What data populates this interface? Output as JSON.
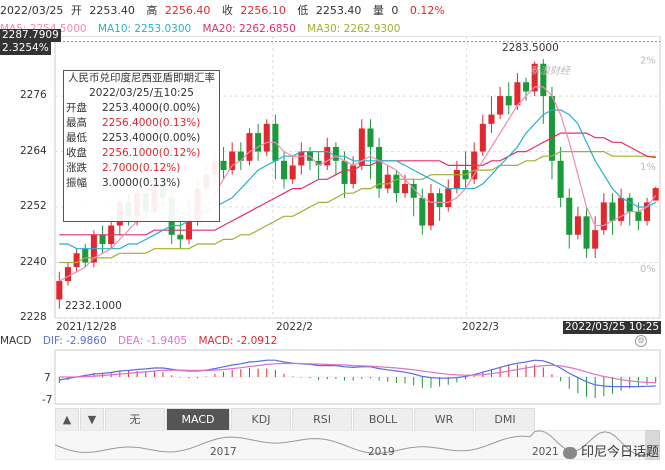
{
  "header": {
    "date": "2022/03/25",
    "open_label": "开",
    "open": "2253.40",
    "high_label": "高",
    "high": "2256.40",
    "close_label": "收",
    "close": "2256.10",
    "low_label": "低",
    "low": "2253.40",
    "vol_label": "量",
    "vol": "0",
    "change": "0.12%"
  },
  "legend": [
    {
      "text": "MA5: 2254.5000",
      "color": "#f08cb4"
    },
    {
      "text": "MA10: 2253.0300",
      "color": "#2ab0c8"
    },
    {
      "text": "MA20: 2262.6850",
      "color": "#e0306a"
    },
    {
      "text": "MA30: 2262.9300",
      "color": "#a0b030"
    }
  ],
  "tags": {
    "top_price": "2287.7909",
    "top_pct": "2.3254%",
    "max_label": "2283.5000",
    "min_label": "2232.1000",
    "crosshair_time": "2022/03/25 10:25"
  },
  "tooltip": {
    "title": "人民币兑印度尼西亚盾即期汇率",
    "time": "2022/03/25/五10:25",
    "rows": [
      {
        "k": "开盘",
        "v": "2253.4000(0.00%)",
        "color": "#333"
      },
      {
        "k": "最高",
        "v": "2256.4000(0.13%)",
        "color": "#e0282e"
      },
      {
        "k": "最低",
        "v": "2253.4000(0.00%)",
        "color": "#333"
      },
      {
        "k": "收盘",
        "v": "2256.1000(0.12%)",
        "color": "#e0282e"
      },
      {
        "k": "涨跌",
        "v": "2.7000(0.12%)",
        "color": "#e0282e"
      },
      {
        "k": "振幅",
        "v": "3.0000(0.13%)",
        "color": "#333"
      }
    ]
  },
  "watermark_logo": "新浪财经",
  "macd": {
    "label": "MACD",
    "dif": "DIF: -2.9860",
    "dea": "DEA: -1.9405",
    "macd": "MACD: -2.0912",
    "yticks": [
      "7",
      "-7"
    ]
  },
  "tabs": [
    "无",
    "MACD",
    "KDJ",
    "RSI",
    "BOLL",
    "WR",
    "DMI"
  ],
  "active_tab": "MACD",
  "arrows": [
    "▲",
    "▼"
  ],
  "scroll_years": [
    "2017",
    "2019",
    "2021"
  ],
  "wechat_watermark": "印尼今日话题",
  "colors": {
    "up": "#e0282e",
    "down": "#1a9a3a",
    "ma5": "#f08cb4",
    "ma10": "#2ab0c8",
    "ma20": "#e0306a",
    "ma30": "#a0b030",
    "dif": "#5a6ee0",
    "dea": "#e070c8"
  },
  "chart_data": {
    "type": "candlestick",
    "title": "人民币兑印度尼西亚盾即期汇率",
    "ylim": [
      2228,
      2289
    ],
    "yticks": [
      2228,
      2240,
      2252,
      2264,
      2276
    ],
    "right_pct_ticks": [
      "0%",
      "1%",
      "2%"
    ],
    "x_labels": [
      "2021/12/28",
      "2022/2",
      "2022/3"
    ],
    "candles": [
      [
        2232,
        2236,
        2230,
        2238
      ],
      [
        2236,
        2239,
        2235,
        2240
      ],
      [
        2239,
        2242,
        2238,
        2243
      ],
      [
        2243,
        2240,
        2239,
        2244
      ],
      [
        2240,
        2246,
        2239,
        2247
      ],
      [
        2246,
        2244,
        2242,
        2248
      ],
      [
        2244,
        2248,
        2243,
        2250
      ],
      [
        2248,
        2253,
        2246,
        2254
      ],
      [
        2253,
        2250,
        2248,
        2255
      ],
      [
        2250,
        2255,
        2248,
        2256
      ],
      [
        2255,
        2251,
        2249,
        2257
      ],
      [
        2251,
        2257,
        2250,
        2258
      ],
      [
        2257,
        2254,
        2252,
        2259
      ],
      [
        2254,
        2246,
        2244,
        2256
      ],
      [
        2246,
        2245,
        2243,
        2250
      ],
      [
        2245,
        2249,
        2244,
        2254
      ],
      [
        2249,
        2256,
        2248,
        2258
      ],
      [
        2256,
        2259,
        2254,
        2261
      ],
      [
        2259,
        2262,
        2257,
        2264
      ],
      [
        2262,
        2260,
        2258,
        2265
      ],
      [
        2260,
        2264,
        2259,
        2266
      ],
      [
        2264,
        2262,
        2260,
        2266
      ],
      [
        2262,
        2268,
        2261,
        2269
      ],
      [
        2268,
        2264,
        2262,
        2270
      ],
      [
        2264,
        2270,
        2263,
        2271
      ],
      [
        2270,
        2262,
        2258,
        2272
      ],
      [
        2262,
        2258,
        2256,
        2264
      ],
      [
        2258,
        2261,
        2257,
        2263
      ],
      [
        2261,
        2264,
        2259,
        2266
      ],
      [
        2264,
        2262,
        2260,
        2265
      ],
      [
        2262,
        2261,
        2258,
        2264
      ],
      [
        2261,
        2265,
        2260,
        2267
      ],
      [
        2265,
        2262,
        2259,
        2266
      ],
      [
        2262,
        2257,
        2254,
        2264
      ],
      [
        2257,
        2261,
        2256,
        2263
      ],
      [
        2261,
        2269,
        2260,
        2271
      ],
      [
        2269,
        2265,
        2258,
        2271
      ],
      [
        2265,
        2256,
        2254,
        2267
      ],
      [
        2256,
        2259,
        2255,
        2261
      ],
      [
        2259,
        2255,
        2253,
        2260
      ],
      [
        2255,
        2257,
        2254,
        2259
      ],
      [
        2257,
        2254,
        2250,
        2258
      ],
      [
        2254,
        2248,
        2246,
        2256
      ],
      [
        2248,
        2255,
        2247,
        2257
      ],
      [
        2255,
        2252,
        2249,
        2256
      ],
      [
        2252,
        2256,
        2251,
        2258
      ],
      [
        2256,
        2260,
        2255,
        2262
      ],
      [
        2260,
        2258,
        2256,
        2264
      ],
      [
        2258,
        2264,
        2257,
        2266
      ],
      [
        2264,
        2270,
        2263,
        2272
      ],
      [
        2270,
        2272,
        2268,
        2276
      ],
      [
        2272,
        2276,
        2271,
        2278
      ],
      [
        2276,
        2274,
        2272,
        2279
      ],
      [
        2274,
        2279,
        2273,
        2281
      ],
      [
        2279,
        2277,
        2275,
        2280
      ],
      [
        2277,
        2283,
        2276,
        2283.5
      ],
      [
        2283,
        2276,
        2270,
        2284
      ],
      [
        2276,
        2262,
        2258,
        2278
      ],
      [
        2262,
        2254,
        2252,
        2265
      ],
      [
        2254,
        2246,
        2243,
        2256
      ],
      [
        2246,
        2250,
        2245,
        2252
      ],
      [
        2250,
        2243,
        2241,
        2252
      ],
      [
        2243,
        2247,
        2241,
        2250
      ],
      [
        2247,
        2253,
        2246,
        2255
      ],
      [
        2253,
        2249,
        2246,
        2255
      ],
      [
        2249,
        2254,
        2248,
        2256
      ],
      [
        2254,
        2251,
        2248,
        2255
      ],
      [
        2251,
        2249,
        2247,
        2253
      ],
      [
        2249,
        2253,
        2248,
        2254
      ],
      [
        2253.4,
        2256.1,
        2253.4,
        2256.4
      ]
    ],
    "ma5": [
      2236,
      2237,
      2238,
      2239,
      2241,
      2242,
      2243,
      2245,
      2247,
      2249,
      2250,
      2252,
      2253,
      2252,
      2251,
      2250,
      2250,
      2252,
      2255,
      2258,
      2261,
      2262,
      2264,
      2265,
      2266,
      2266,
      2264,
      2263,
      2263,
      2263,
      2261,
      2262,
      2263,
      2262,
      2261,
      2262,
      2263,
      2262,
      2261,
      2260,
      2258,
      2256,
      2254,
      2253,
      2253,
      2253,
      2254,
      2256,
      2259,
      2262,
      2265,
      2268,
      2271,
      2274,
      2276,
      2278,
      2278,
      2276,
      2272,
      2266,
      2259,
      2252,
      2248,
      2248,
      2249,
      2250,
      2251,
      2251,
      2252,
      2254.5
    ],
    "ma10": [
      2244,
      2244,
      2243,
      2243,
      2243,
      2243,
      2243,
      2243,
      2244,
      2244,
      2245,
      2246,
      2247,
      2248,
      2248,
      2249,
      2250,
      2251,
      2252,
      2253,
      2254,
      2256,
      2258,
      2260,
      2261,
      2262,
      2263,
      2263,
      2264,
      2264,
      2264,
      2264,
      2263,
      2263,
      2262,
      2262,
      2262,
      2262,
      2262,
      2262,
      2261,
      2260,
      2259,
      2258,
      2257,
      2256,
      2256,
      2256,
      2256,
      2257,
      2259,
      2261,
      2263,
      2265,
      2268,
      2270,
      2272,
      2273,
      2273,
      2272,
      2270,
      2266,
      2262,
      2259,
      2256,
      2254,
      2253,
      2252,
      2252,
      2253.03
    ],
    "ma20": [
      2246,
      2246,
      2246,
      2246,
      2246,
      2246,
      2246,
      2246,
      2246,
      2246,
      2246,
      2247,
      2247,
      2247,
      2247,
      2247,
      2247,
      2247,
      2247,
      2248,
      2249,
      2250,
      2251,
      2252,
      2253,
      2254,
      2255,
      2256,
      2256,
      2257,
      2258,
      2258,
      2259,
      2260,
      2260,
      2261,
      2261,
      2262,
      2262,
      2262,
      2262,
      2262,
      2262,
      2262,
      2262,
      2261,
      2261,
      2261,
      2261,
      2261,
      2262,
      2262,
      2263,
      2264,
      2264,
      2265,
      2266,
      2267,
      2268,
      2268,
      2268,
      2268,
      2267,
      2267,
      2266,
      2266,
      2265,
      2264,
      2263,
      2262.69
    ],
    "ma30": [
      2240,
      2240,
      2240,
      2241,
      2241,
      2241,
      2241,
      2242,
      2242,
      2242,
      2242,
      2243,
      2243,
      2243,
      2243,
      2243,
      2244,
      2244,
      2244,
      2245,
      2245,
      2246,
      2246,
      2247,
      2248,
      2249,
      2250,
      2250,
      2251,
      2252,
      2253,
      2253,
      2254,
      2255,
      2255,
      2256,
      2256,
      2257,
      2257,
      2258,
      2258,
      2258,
      2258,
      2259,
      2259,
      2259,
      2259,
      2259,
      2260,
      2260,
      2260,
      2261,
      2261,
      2261,
      2262,
      2262,
      2263,
      2263,
      2264,
      2264,
      2264,
      2264,
      2264,
      2264,
      2263,
      2263,
      2263,
      2263,
      2263,
      2262.93
    ],
    "macd_ylim": [
      -9,
      9
    ],
    "dif": [
      -1,
      -0.5,
      0,
      0.5,
      1,
      1.2,
      1.5,
      2,
      2.2,
      2.5,
      2.7,
      3,
      3,
      2.6,
      2.2,
      2,
      2,
      2.3,
      2.8,
      3.4,
      4,
      4.4,
      5,
      5.2,
      5.6,
      5.6,
      5,
      4.6,
      4.4,
      4.2,
      3.8,
      3.8,
      3.8,
      3.4,
      3.2,
      3.4,
      3.4,
      2.8,
      2.4,
      2,
      1.6,
      1,
      0.2,
      -0.2,
      -0.4,
      -0.4,
      -0.2,
      0.2,
      0.8,
      1.6,
      2.4,
      3.2,
      4,
      4.6,
      5,
      5.6,
      5.4,
      4.4,
      3,
      1.2,
      -0.2,
      -1.6,
      -2.6,
      -3,
      -3.2,
      -3.2,
      -3.2,
      -3.2,
      -3.1,
      -2.986
    ],
    "dea": [
      0,
      0,
      0,
      0.1,
      0.3,
      0.5,
      0.7,
      1,
      1.2,
      1.5,
      1.7,
      2,
      2.2,
      2.3,
      2.3,
      2.2,
      2.2,
      2.2,
      2.3,
      2.5,
      2.8,
      3.1,
      3.5,
      3.8,
      4.2,
      4.4,
      4.5,
      4.5,
      4.5,
      4.4,
      4.3,
      4.2,
      4.1,
      4,
      3.8,
      3.7,
      3.6,
      3.4,
      3.2,
      3,
      2.7,
      2.4,
      2,
      1.6,
      1.2,
      0.9,
      0.7,
      0.6,
      0.6,
      0.8,
      1.1,
      1.5,
      2,
      2.5,
      3,
      3.5,
      3.8,
      3.9,
      3.7,
      3.2,
      2.5,
      1.7,
      0.9,
      0.2,
      -0.4,
      -0.9,
      -1.3,
      -1.6,
      -1.8,
      -1.9405
    ]
  }
}
